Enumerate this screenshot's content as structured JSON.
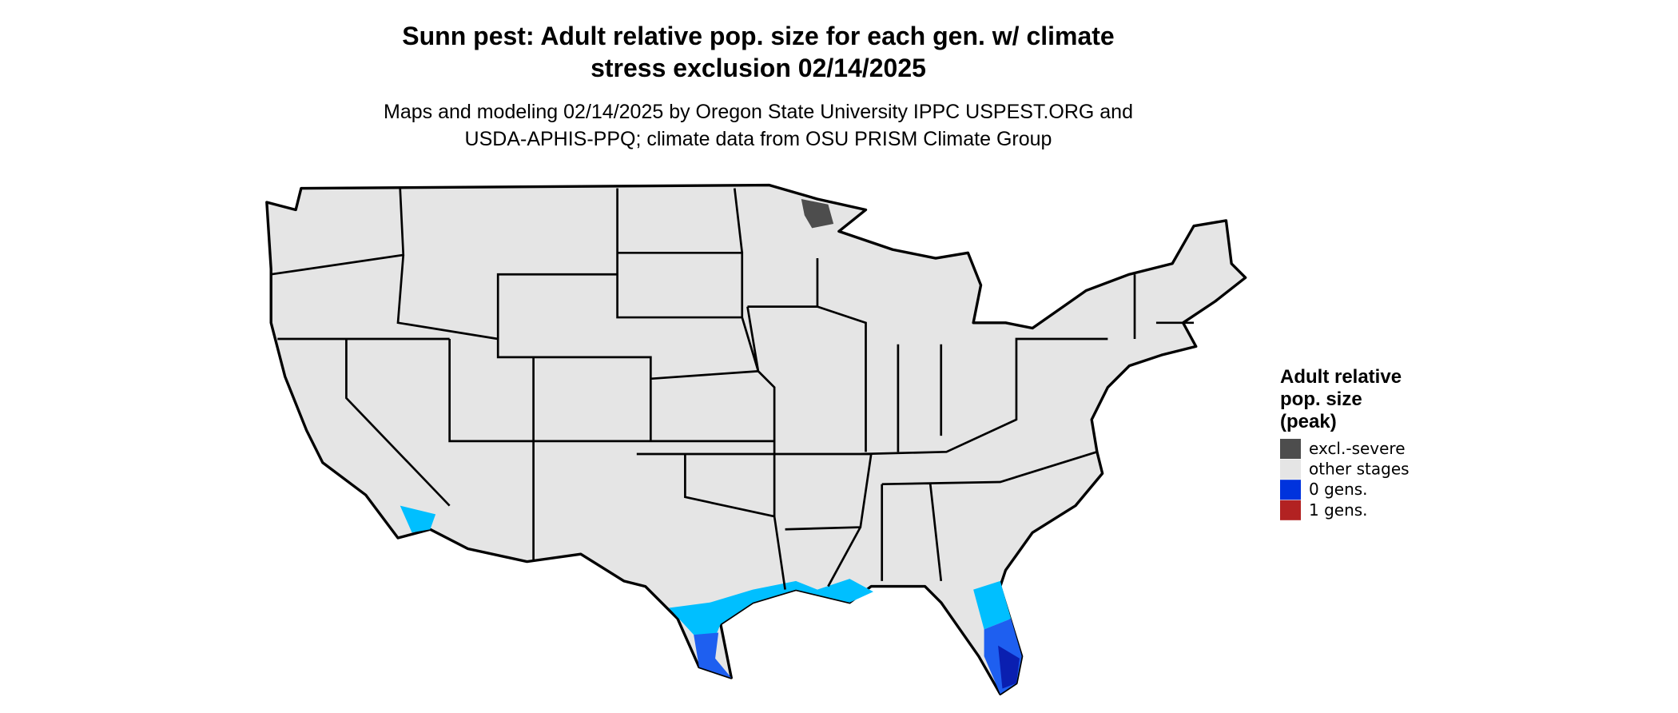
{
  "title_lines": [
    "Sunn pest: Adult relative pop. size for each gen. w/ climate",
    "stress exclusion 02/14/2025"
  ],
  "subtitle_lines": [
    "Maps and modeling 02/14/2025 by Oregon State University IPPC USPEST.ORG and",
    "USDA-APHIS-PPQ; climate data from OSU PRISM Climate Group"
  ],
  "legend": {
    "title_lines": [
      "Adult relative",
      "pop. size",
      "(peak)"
    ],
    "items": [
      {
        "label": "excl.-severe",
        "color": "#4d4d4d"
      },
      {
        "label": "other stages",
        "color": "#e5e5e5"
      },
      {
        "label": "0 gens.",
        "color": "#0033dd"
      },
      {
        "label": "1 gens.",
        "color": "#b22222"
      }
    ]
  }
}
